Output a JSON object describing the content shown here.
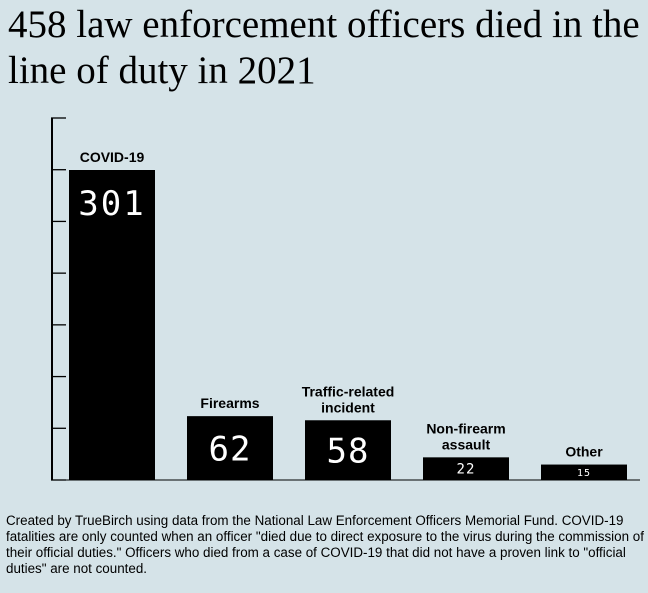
{
  "title": "458 law enforcement officers died in the line of duty in 2021",
  "footnote": "Created by TrueBirch using data from the National Law Enforcement Officers Memorial Fund. COVID-19 fatalities are only counted when an officer \"died due to direct exposure to the virus during the commission of their official duties.\" Officers who died from a case of COVID-19 that did not have a proven link to \"official duties\" are not counted.",
  "chart_data": {
    "type": "bar",
    "title": "458 law enforcement officers died in the line of duty in 2021",
    "categories": [
      "COVID-19",
      "Firearms",
      "Traffic-related incident",
      "Non-firearm assault",
      "Other"
    ],
    "category_lines": [
      [
        "COVID-19"
      ],
      [
        "Firearms"
      ],
      [
        "Traffic-related",
        "incident"
      ],
      [
        "Non-firearm",
        "assault"
      ],
      [
        "Other"
      ]
    ],
    "values": [
      301,
      62,
      58,
      22,
      15
    ],
    "value_labels": [
      "301",
      "62",
      "58",
      "22",
      "15"
    ],
    "ylim": [
      0,
      350
    ],
    "grid": false,
    "legend": "none",
    "colors": {
      "bar": "#000000",
      "value_text": "#ffffff",
      "axis": "#000000",
      "background": "#d5e3e8"
    }
  }
}
